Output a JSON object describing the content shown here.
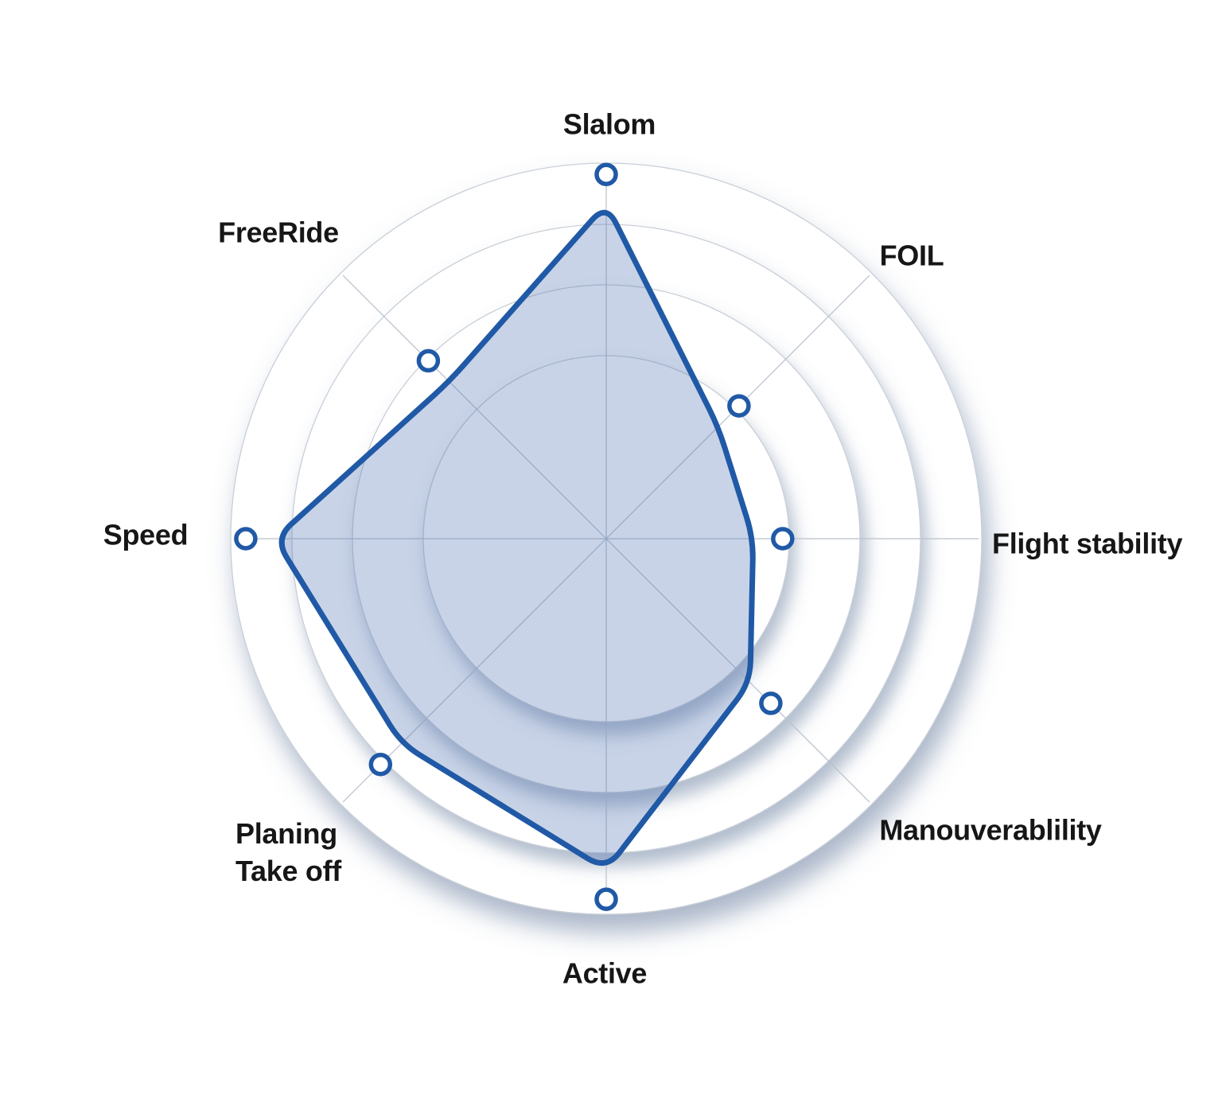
{
  "chart_data": {
    "type": "radar",
    "title": "",
    "legend": "none",
    "range": [
      0,
      10
    ],
    "grid_rings": 4,
    "axes": [
      {
        "label": "Slalom",
        "value": 9.7
      },
      {
        "label": "FOIL",
        "value": 5.0
      },
      {
        "label": "Flight stability",
        "value": 4.7
      },
      {
        "label": "Manouverablility",
        "value": 6.2
      },
      {
        "label": "Active",
        "value": 9.6
      },
      {
        "label": "Planing\nTake off",
        "value": 8.5
      },
      {
        "label": "Speed",
        "value": 9.6
      },
      {
        "label": "FreeRide",
        "value": 6.7
      }
    ],
    "style": {
      "stroke": "#2059a6",
      "fill": "rgba(83,117,180,0.32)",
      "marker_fill": "#ffffff",
      "ring_fill": "#ffffff",
      "ring_line": "#c9cfd8",
      "spoke_line": "#b9c1cc",
      "shadow": "#64799b",
      "label_color": "#161616",
      "background": "#ffffff"
    }
  }
}
